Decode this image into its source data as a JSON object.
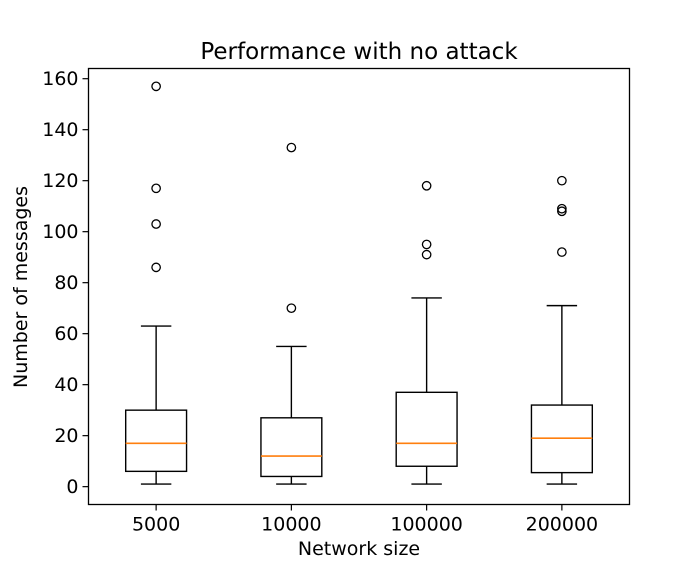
{
  "chart_data": {
    "type": "boxplot",
    "title": "Performance with no attack",
    "xlabel": "Network size",
    "ylabel": "Number of messages",
    "categories": [
      "5000",
      "10000",
      "100000",
      "200000"
    ],
    "ylim": [
      -7,
      164
    ],
    "yticks": [
      0,
      20,
      40,
      60,
      80,
      100,
      120,
      140,
      160
    ],
    "grid": false,
    "box_color": "#000000",
    "median_color": "#ff7f0e",
    "boxes": [
      {
        "category": "5000",
        "whisker_low": 1,
        "q1": 6,
        "median": 17,
        "q3": 30,
        "whisker_high": 63,
        "outliers": [
          86,
          103,
          117,
          157
        ]
      },
      {
        "category": "10000",
        "whisker_low": 1,
        "q1": 4,
        "median": 12,
        "q3": 27,
        "whisker_high": 55,
        "outliers": [
          70,
          133
        ]
      },
      {
        "category": "100000",
        "whisker_low": 1,
        "q1": 8,
        "median": 17,
        "q3": 37,
        "whisker_high": 74,
        "outliers": [
          91,
          95,
          118
        ]
      },
      {
        "category": "200000",
        "whisker_low": 1,
        "q1": 5.5,
        "median": 19,
        "q3": 32,
        "whisker_high": 71,
        "outliers": [
          92,
          108,
          109,
          120
        ]
      }
    ]
  }
}
